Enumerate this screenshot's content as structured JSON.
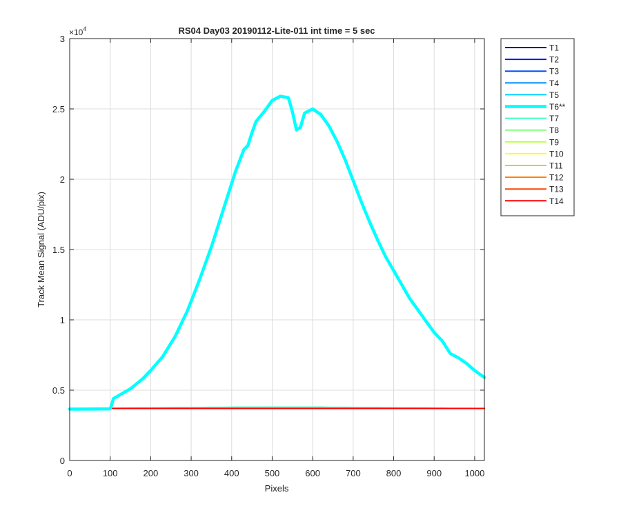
{
  "chart_data": {
    "type": "line",
    "title": "RS04 Day03 20190112-Lite-011 int time = 5 sec",
    "xlabel": "Pixels",
    "ylabel": "Track Mean Signal (ADU/pix)",
    "xlim": [
      0,
      1024
    ],
    "ylim": [
      0,
      30000
    ],
    "x_ticks": [
      0,
      100,
      200,
      300,
      400,
      500,
      600,
      700,
      800,
      900,
      1000
    ],
    "x_tick_labels": [
      "0",
      "100",
      "200",
      "300",
      "400",
      "500",
      "600",
      "700",
      "800",
      "900",
      "1000"
    ],
    "y_ticks": [
      0,
      5000,
      10000,
      15000,
      20000,
      25000,
      30000
    ],
    "y_tick_labels": [
      "0",
      "0.5",
      "1",
      "1.5",
      "2",
      "2.5",
      "3"
    ],
    "y_multiplier": {
      "base": "×10",
      "exponent": "4"
    },
    "grid": true,
    "legend_position": "outside-right",
    "x": [
      0,
      50,
      100,
      103,
      108,
      120,
      150,
      180,
      200,
      230,
      260,
      290,
      320,
      350,
      380,
      410,
      430,
      440,
      450,
      460,
      480,
      500,
      520,
      540,
      550,
      560,
      570,
      580,
      600,
      620,
      640,
      660,
      680,
      700,
      720,
      740,
      760,
      780,
      800,
      820,
      840,
      860,
      880,
      900,
      920,
      940,
      960,
      980,
      1000,
      1024
    ],
    "series": [
      {
        "name": "T1",
        "color": "#00008f",
        "width": 2,
        "values": [
          3700,
          3700,
          3700,
          3700,
          3700,
          3700,
          3700,
          3700,
          3700,
          3700,
          3700,
          3700,
          3700,
          3700,
          3700,
          3700,
          3700,
          3700,
          3700,
          3700,
          3700,
          3700,
          3700,
          3700,
          3700,
          3700,
          3700,
          3700,
          3700,
          3700,
          3700,
          3700,
          3700,
          3700,
          3700,
          3700,
          3700,
          3700,
          3700,
          3700,
          3700,
          3700,
          3700,
          3700,
          3700,
          3700,
          3700,
          3700,
          3700,
          3700
        ]
      },
      {
        "name": "T2",
        "color": "#0010ff",
        "width": 2,
        "values": [
          3700,
          3700,
          3700,
          3700,
          3700,
          3700,
          3700,
          3700,
          3700,
          3700,
          3700,
          3700,
          3700,
          3700,
          3700,
          3700,
          3700,
          3700,
          3700,
          3700,
          3700,
          3700,
          3700,
          3700,
          3700,
          3700,
          3700,
          3700,
          3700,
          3700,
          3700,
          3700,
          3700,
          3700,
          3700,
          3700,
          3700,
          3700,
          3700,
          3700,
          3700,
          3700,
          3700,
          3700,
          3700,
          3700,
          3700,
          3700,
          3700,
          3700
        ]
      },
      {
        "name": "T3",
        "color": "#0050ff",
        "width": 2,
        "values": [
          3700,
          3700,
          3700,
          3700,
          3700,
          3700,
          3700,
          3700,
          3700,
          3700,
          3700,
          3700,
          3700,
          3700,
          3700,
          3700,
          3700,
          3700,
          3700,
          3700,
          3700,
          3700,
          3700,
          3700,
          3700,
          3700,
          3700,
          3700,
          3700,
          3700,
          3700,
          3700,
          3700,
          3700,
          3700,
          3700,
          3700,
          3700,
          3700,
          3700,
          3700,
          3700,
          3700,
          3700,
          3700,
          3700,
          3700,
          3700,
          3700,
          3700
        ]
      },
      {
        "name": "T4",
        "color": "#0090ff",
        "width": 2,
        "values": [
          3700,
          3700,
          3700,
          3700,
          3700,
          3700,
          3700,
          3700,
          3700,
          3700,
          3700,
          3700,
          3700,
          3700,
          3700,
          3700,
          3700,
          3700,
          3700,
          3700,
          3700,
          3700,
          3700,
          3700,
          3700,
          3700,
          3700,
          3700,
          3700,
          3700,
          3700,
          3700,
          3700,
          3700,
          3700,
          3700,
          3700,
          3700,
          3700,
          3700,
          3700,
          3700,
          3700,
          3700,
          3700,
          3700,
          3700,
          3700,
          3700,
          3700
        ]
      },
      {
        "name": "T5",
        "color": "#00cfff",
        "width": 2,
        "values": [
          3700,
          3700,
          3700,
          3700,
          3700,
          3700,
          3700,
          3700,
          3700,
          3700,
          3700,
          3700,
          3700,
          3700,
          3700,
          3700,
          3700,
          3700,
          3700,
          3700,
          3700,
          3700,
          3700,
          3700,
          3700,
          3700,
          3700,
          3700,
          3700,
          3700,
          3700,
          3700,
          3700,
          3700,
          3700,
          3700,
          3700,
          3700,
          3700,
          3700,
          3700,
          3700,
          3700,
          3700,
          3700,
          3700,
          3700,
          3700,
          3700,
          3700
        ]
      },
      {
        "name": "T6**",
        "color": "#00ffff",
        "width": 4.5,
        "values": [
          3650,
          3660,
          3670,
          3900,
          4400,
          4600,
          5100,
          5800,
          6400,
          7400,
          8800,
          10600,
          12800,
          15200,
          17900,
          20600,
          22100,
          22400,
          23300,
          24100,
          24800,
          25600,
          25900,
          25800,
          24800,
          23500,
          23700,
          24700,
          25000,
          24600,
          23800,
          22700,
          21400,
          19900,
          18400,
          17000,
          15700,
          14500,
          13500,
          12500,
          11500,
          10700,
          9900,
          9100,
          8500,
          7600,
          7300,
          6900,
          6400,
          5900
        ]
      },
      {
        "name": "T7",
        "color": "#40ffbf",
        "width": 2,
        "values": [
          3700,
          3700,
          3710,
          3715,
          3720,
          3720,
          3730,
          3740,
          3740,
          3750,
          3760,
          3760,
          3770,
          3780,
          3780,
          3790,
          3790,
          3790,
          3790,
          3790,
          3790,
          3790,
          3790,
          3790,
          3790,
          3790,
          3790,
          3790,
          3790,
          3790,
          3780,
          3780,
          3780,
          3770,
          3770,
          3760,
          3760,
          3750,
          3750,
          3740,
          3740,
          3730,
          3730,
          3720,
          3720,
          3710,
          3710,
          3705,
          3700,
          3700
        ]
      },
      {
        "name": "T8",
        "color": "#80ff80",
        "width": 2,
        "values": [
          3700,
          3700,
          3700,
          3700,
          3700,
          3700,
          3700,
          3700,
          3700,
          3700,
          3700,
          3700,
          3700,
          3700,
          3700,
          3700,
          3700,
          3700,
          3700,
          3700,
          3700,
          3700,
          3700,
          3700,
          3700,
          3700,
          3700,
          3700,
          3700,
          3700,
          3700,
          3700,
          3700,
          3700,
          3700,
          3700,
          3700,
          3700,
          3700,
          3700,
          3700,
          3700,
          3700,
          3700,
          3700,
          3700,
          3700,
          3700,
          3700,
          3700
        ]
      },
      {
        "name": "T9",
        "color": "#bfff40",
        "width": 2,
        "values": [
          3700,
          3700,
          3700,
          3700,
          3700,
          3700,
          3700,
          3700,
          3700,
          3700,
          3700,
          3700,
          3700,
          3700,
          3700,
          3700,
          3700,
          3700,
          3700,
          3700,
          3700,
          3700,
          3700,
          3700,
          3700,
          3700,
          3700,
          3700,
          3700,
          3700,
          3700,
          3700,
          3700,
          3700,
          3700,
          3700,
          3700,
          3700,
          3700,
          3700,
          3700,
          3700,
          3700,
          3700,
          3700,
          3700,
          3700,
          3700,
          3700,
          3700
        ]
      },
      {
        "name": "T10",
        "color": "#ffff00",
        "width": 2,
        "values": [
          3700,
          3700,
          3700,
          3700,
          3700,
          3700,
          3700,
          3700,
          3700,
          3700,
          3700,
          3700,
          3700,
          3700,
          3700,
          3700,
          3700,
          3700,
          3700,
          3700,
          3700,
          3700,
          3700,
          3700,
          3700,
          3700,
          3700,
          3700,
          3700,
          3700,
          3700,
          3700,
          3700,
          3700,
          3700,
          3700,
          3700,
          3700,
          3700,
          3700,
          3700,
          3700,
          3700,
          3700,
          3700,
          3700,
          3700,
          3700,
          3700,
          3700
        ]
      },
      {
        "name": "T11",
        "color": "#ffbf00",
        "width": 2,
        "values": [
          3700,
          3700,
          3700,
          3700,
          3700,
          3700,
          3700,
          3700,
          3700,
          3700,
          3700,
          3700,
          3700,
          3700,
          3700,
          3700,
          3700,
          3700,
          3700,
          3700,
          3700,
          3700,
          3700,
          3700,
          3700,
          3700,
          3700,
          3700,
          3700,
          3700,
          3700,
          3700,
          3700,
          3700,
          3700,
          3700,
          3700,
          3700,
          3700,
          3700,
          3700,
          3700,
          3700,
          3700,
          3700,
          3700,
          3700,
          3700,
          3700,
          3700
        ]
      },
      {
        "name": "T12",
        "color": "#ff8000",
        "width": 2,
        "values": [
          3700,
          3700,
          3700,
          3700,
          3700,
          3700,
          3700,
          3700,
          3700,
          3700,
          3700,
          3700,
          3700,
          3700,
          3700,
          3700,
          3700,
          3700,
          3700,
          3700,
          3700,
          3700,
          3700,
          3700,
          3700,
          3700,
          3700,
          3700,
          3700,
          3700,
          3700,
          3700,
          3700,
          3700,
          3700,
          3700,
          3700,
          3700,
          3700,
          3700,
          3700,
          3700,
          3700,
          3700,
          3700,
          3700,
          3700,
          3700,
          3700,
          3700
        ]
      },
      {
        "name": "T13",
        "color": "#ff4000",
        "width": 2,
        "values": [
          3700,
          3700,
          3700,
          3700,
          3700,
          3700,
          3700,
          3700,
          3700,
          3700,
          3700,
          3700,
          3700,
          3700,
          3700,
          3700,
          3700,
          3700,
          3700,
          3700,
          3700,
          3700,
          3700,
          3700,
          3700,
          3700,
          3700,
          3700,
          3700,
          3700,
          3700,
          3700,
          3700,
          3700,
          3700,
          3700,
          3700,
          3700,
          3700,
          3700,
          3700,
          3700,
          3700,
          3700,
          3700,
          3700,
          3700,
          3700,
          3700,
          3700
        ]
      },
      {
        "name": "T14",
        "color": "#ff0000",
        "width": 2,
        "values": [
          3700,
          3700,
          3700,
          3700,
          3700,
          3700,
          3700,
          3700,
          3700,
          3700,
          3700,
          3700,
          3700,
          3700,
          3700,
          3700,
          3700,
          3700,
          3700,
          3700,
          3700,
          3700,
          3700,
          3700,
          3700,
          3700,
          3700,
          3700,
          3700,
          3700,
          3700,
          3700,
          3700,
          3700,
          3700,
          3700,
          3700,
          3700,
          3700,
          3700,
          3700,
          3700,
          3700,
          3700,
          3700,
          3700,
          3700,
          3700,
          3700,
          3700
        ]
      }
    ]
  }
}
